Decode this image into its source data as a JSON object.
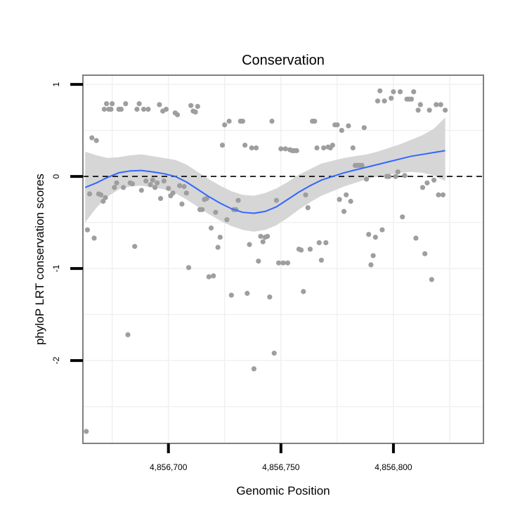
{
  "chart_data": {
    "type": "scatter",
    "title": "Conservation",
    "xlabel": "Genomic Position",
    "ylabel": "phyloP LRT conservation scores",
    "xlim": [
      4856662,
      4856840
    ],
    "ylim": [
      -2.9,
      1.1
    ],
    "x_ticks": [
      4856700,
      4856750,
      4856800
    ],
    "x_tick_labels": [
      "4,856,700",
      "4,856,750",
      "4,856,800"
    ],
    "y_ticks": [
      1,
      0,
      -1,
      -2
    ],
    "y_tick_labels": [
      "1",
      "0",
      "-1",
      "-2"
    ],
    "reference_line": {
      "y": 0,
      "style": "dashed"
    },
    "grid": true,
    "colors": {
      "points": "#9e9e9e",
      "smooth": "#3366ff",
      "ribbon": "#d4d4d4",
      "grid": "#f0f0f0",
      "panel_border": "#808080",
      "refline": "#000000"
    },
    "points": [
      [
        4856663.5,
        -2.77
      ],
      [
        4856664,
        -0.58
      ],
      [
        4856665,
        -0.19
      ],
      [
        4856666,
        0.42
      ],
      [
        4856667,
        -0.67
      ],
      [
        4856668,
        0.39
      ],
      [
        4856669,
        -0.19
      ],
      [
        4856670,
        -0.2
      ],
      [
        4856671,
        -0.27
      ],
      [
        4856671.5,
        0.73
      ],
      [
        4856672,
        -0.23
      ],
      [
        4856672.5,
        0.79
      ],
      [
        4856673.5,
        0.73
      ],
      [
        4856674.5,
        0.73
      ],
      [
        4856675,
        0.79
      ],
      [
        4856676,
        -0.12
      ],
      [
        4856677,
        -0.07
      ],
      [
        4856678,
        0.73
      ],
      [
        4856679,
        0.73
      ],
      [
        4856680,
        -0.12
      ],
      [
        4856681,
        0.79
      ],
      [
        4856682,
        -1.72
      ],
      [
        4856683,
        -0.07
      ],
      [
        4856684,
        -0.08
      ],
      [
        4856685,
        -0.76
      ],
      [
        4856686,
        0.73
      ],
      [
        4856687,
        0.79
      ],
      [
        4856688,
        -0.15
      ],
      [
        4856689,
        0.73
      ],
      [
        4856690,
        -0.05
      ],
      [
        4856691,
        0.73
      ],
      [
        4856692,
        -0.09
      ],
      [
        4856693,
        -0.04
      ],
      [
        4856694,
        -0.12
      ],
      [
        4856695,
        -0.07
      ],
      [
        4856696,
        0.78
      ],
      [
        4856696.5,
        -0.24
      ],
      [
        4856697.5,
        0.71
      ],
      [
        4856698,
        -0.05
      ],
      [
        4856699,
        0.73
      ],
      [
        4856700,
        -0.13
      ],
      [
        4856701,
        -0.21
      ],
      [
        4856702,
        -0.18
      ],
      [
        4856703,
        0.69
      ],
      [
        4856704,
        0.67
      ],
      [
        4856705,
        -0.1
      ],
      [
        4856706,
        -0.3
      ],
      [
        4856707,
        -0.11
      ],
      [
        4856708,
        -0.18
      ],
      [
        4856709,
        -0.99
      ],
      [
        4856710,
        0.77
      ],
      [
        4856711,
        0.71
      ],
      [
        4856712,
        0.7
      ],
      [
        4856713,
        0.76
      ],
      [
        4856714,
        -0.36
      ],
      [
        4856715,
        -0.36
      ],
      [
        4856716,
        -0.25
      ],
      [
        4856717,
        -0.24
      ],
      [
        4856718,
        -1.09
      ],
      [
        4856719,
        -0.56
      ],
      [
        4856720,
        -1.08
      ],
      [
        4856721,
        -0.39
      ],
      [
        4856722,
        -0.77
      ],
      [
        4856723,
        -0.66
      ],
      [
        4856724,
        0.34
      ],
      [
        4856725,
        0.56
      ],
      [
        4856726,
        -0.47
      ],
      [
        4856727,
        0.6
      ],
      [
        4856728,
        -1.29
      ],
      [
        4856729,
        -0.36
      ],
      [
        4856730,
        -0.36
      ],
      [
        4856731,
        -0.26
      ],
      [
        4856732,
        0.6
      ],
      [
        4856733,
        0.6
      ],
      [
        4856734,
        0.34
      ],
      [
        4856735,
        -1.27
      ],
      [
        4856736,
        -0.74
      ],
      [
        4856737,
        0.31
      ],
      [
        4856738,
        -2.09
      ],
      [
        4856739,
        0.31
      ],
      [
        4856740,
        -0.92
      ],
      [
        4856741,
        -0.65
      ],
      [
        4856742,
        -0.71
      ],
      [
        4856743,
        -0.66
      ],
      [
        4856744,
        -0.65
      ],
      [
        4856745,
        -1.31
      ],
      [
        4856746,
        0.6
      ],
      [
        4856747,
        -1.92
      ],
      [
        4856748,
        -0.26
      ],
      [
        4856749,
        -0.94
      ],
      [
        4856750,
        0.3
      ],
      [
        4856751,
        -0.94
      ],
      [
        4856752,
        0.3
      ],
      [
        4856753,
        -0.94
      ],
      [
        4856754,
        0.29
      ],
      [
        4856755,
        0.28
      ],
      [
        4856756,
        0.28
      ],
      [
        4856757,
        0.28
      ],
      [
        4856758,
        -0.79
      ],
      [
        4856759,
        -0.8
      ],
      [
        4856760,
        -1.25
      ],
      [
        4856761,
        -0.2
      ],
      [
        4856762,
        -0.34
      ],
      [
        4856763,
        -0.79
      ],
      [
        4856764,
        0.6
      ],
      [
        4856765,
        0.6
      ],
      [
        4856766,
        0.31
      ],
      [
        4856767,
        -0.72
      ],
      [
        4856768,
        -0.91
      ],
      [
        4856769,
        0.31
      ],
      [
        4856770,
        -0.72
      ],
      [
        4856771,
        0.32
      ],
      [
        4856772,
        0.31
      ],
      [
        4856773,
        0.34
      ],
      [
        4856774,
        0.56
      ],
      [
        4856775,
        0.56
      ],
      [
        4856776,
        -0.25
      ],
      [
        4856777,
        0.5
      ],
      [
        4856778,
        -0.38
      ],
      [
        4856779,
        -0.2
      ],
      [
        4856780,
        0.55
      ],
      [
        4856781,
        -0.27
      ],
      [
        4856782,
        0.31
      ],
      [
        4856783,
        0.12
      ],
      [
        4856784,
        0.12
      ],
      [
        4856785,
        0.12
      ],
      [
        4856786,
        0.12
      ],
      [
        4856787,
        0.53
      ],
      [
        4856788,
        -0.03
      ],
      [
        4856789,
        -0.63
      ],
      [
        4856790,
        -0.96
      ],
      [
        4856791,
        -0.86
      ],
      [
        4856792,
        -0.66
      ],
      [
        4856793,
        0.82
      ],
      [
        4856794,
        0.93
      ],
      [
        4856795,
        -0.58
      ],
      [
        4856796,
        0.82
      ],
      [
        4856797,
        0
      ],
      [
        4856798,
        0.0
      ],
      [
        4856799,
        0.85
      ],
      [
        4856800,
        0.92
      ],
      [
        4856801,
        0.0
      ],
      [
        4856802,
        0.05
      ],
      [
        4856803,
        0.92
      ],
      [
        4856804,
        -0.44
      ],
      [
        4856805,
        0.01
      ],
      [
        4856806,
        0.84
      ],
      [
        4856807,
        0.84
      ],
      [
        4856808,
        0.84
      ],
      [
        4856809,
        0.92
      ],
      [
        4856810,
        -0.67
      ],
      [
        4856811,
        0.72
      ],
      [
        4856812,
        0.78
      ],
      [
        4856813,
        -0.12
      ],
      [
        4856814,
        -0.84
      ],
      [
        4856815,
        -0.07
      ],
      [
        4856816,
        0.72
      ],
      [
        4856817,
        -1.12
      ],
      [
        4856818,
        -0.04
      ],
      [
        4856819,
        0.78
      ],
      [
        4856820,
        -0.2
      ],
      [
        4856821,
        0.78
      ],
      [
        4856822,
        -0.2
      ],
      [
        4856823,
        0.72
      ]
    ],
    "smooth_line": {
      "x": [
        4856663,
        4856668,
        4856673,
        4856678,
        4856683,
        4856688,
        4856693,
        4856698,
        4856703,
        4856708,
        4856713,
        4856718,
        4856723,
        4856728,
        4856733,
        4856738,
        4856743,
        4856748,
        4856753,
        4856758,
        4856763,
        4856768,
        4856773,
        4856778,
        4856783,
        4856788,
        4856793,
        4856798,
        4856803,
        4856808,
        4856813,
        4856818,
        4856823
      ],
      "y": [
        -0.12,
        -0.07,
        -0.01,
        0.04,
        0.06,
        0.065,
        0.05,
        0.03,
        0.0,
        -0.06,
        -0.14,
        -0.22,
        -0.29,
        -0.35,
        -0.39,
        -0.4,
        -0.38,
        -0.33,
        -0.25,
        -0.17,
        -0.1,
        -0.04,
        0.0,
        0.04,
        0.07,
        0.1,
        0.13,
        0.16,
        0.19,
        0.22,
        0.24,
        0.26,
        0.28
      ],
      "lower": [
        -0.5,
        -0.34,
        -0.22,
        -0.14,
        -0.11,
        -0.1,
        -0.12,
        -0.14,
        -0.18,
        -0.25,
        -0.33,
        -0.41,
        -0.48,
        -0.54,
        -0.58,
        -0.6,
        -0.58,
        -0.53,
        -0.45,
        -0.36,
        -0.28,
        -0.21,
        -0.16,
        -0.11,
        -0.07,
        -0.03,
        0.0,
        0.02,
        0.04,
        0.05,
        0.04,
        0.01,
        -0.05
      ],
      "upper": [
        0.27,
        0.23,
        0.2,
        0.21,
        0.23,
        0.24,
        0.22,
        0.2,
        0.18,
        0.13,
        0.05,
        -0.03,
        -0.1,
        -0.16,
        -0.2,
        -0.21,
        -0.18,
        -0.13,
        -0.06,
        0.02,
        0.08,
        0.14,
        0.17,
        0.2,
        0.22,
        0.24,
        0.27,
        0.31,
        0.35,
        0.4,
        0.45,
        0.52,
        0.64
      ]
    }
  }
}
